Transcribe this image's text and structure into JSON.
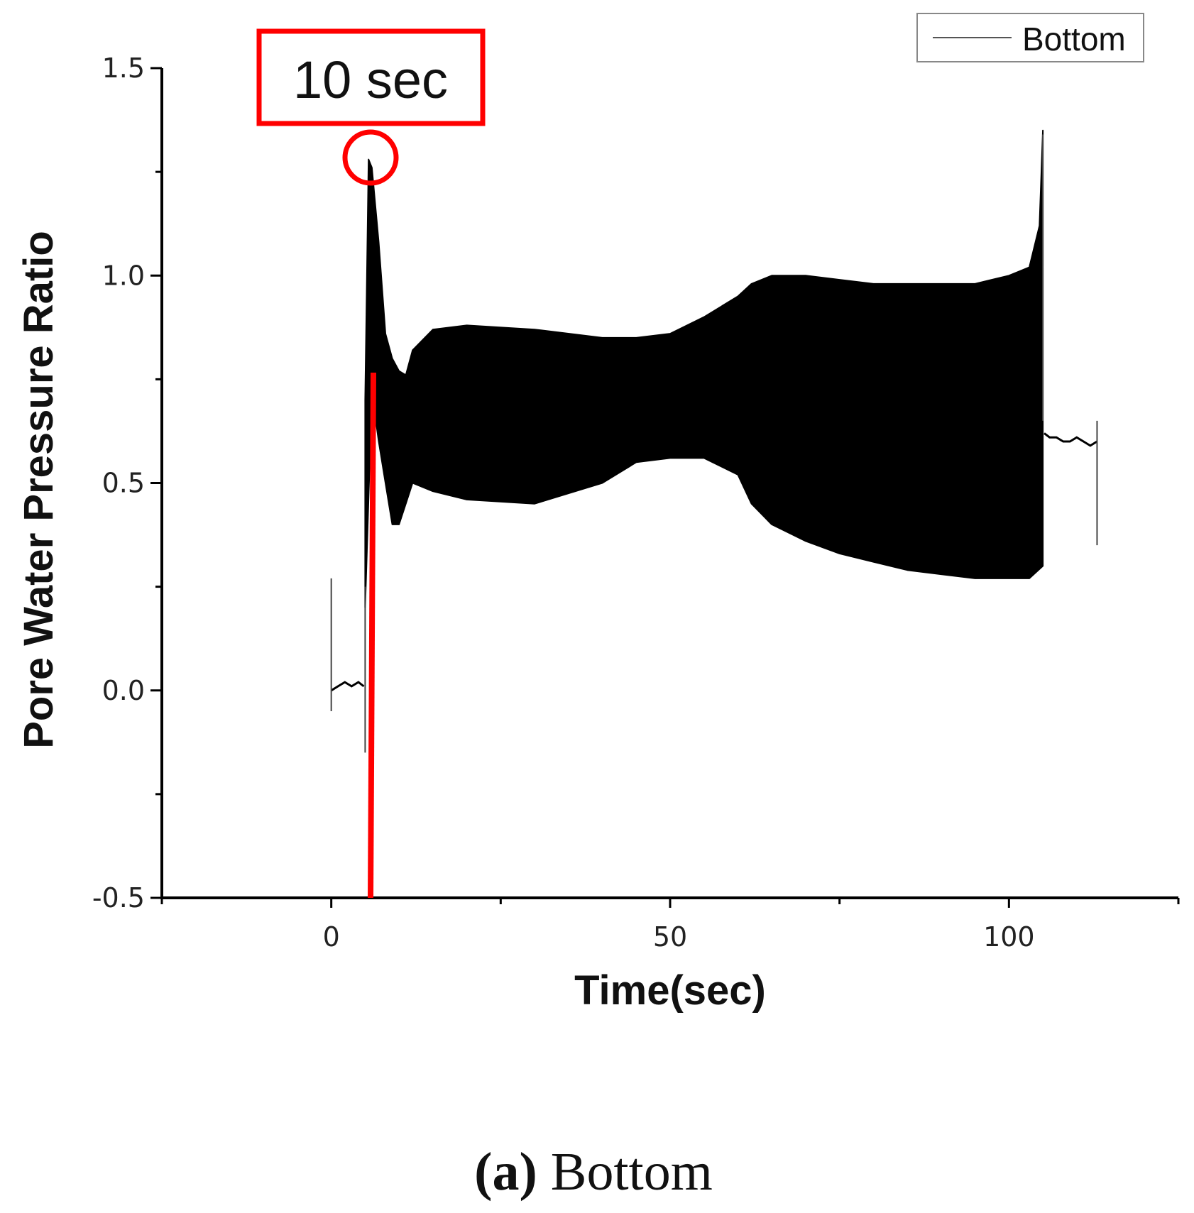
{
  "chart_data": {
    "type": "line",
    "title": "",
    "xlabel": "Time(sec)",
    "ylabel": "Pore Water Pressure Ratio",
    "xlim": [
      -25,
      125
    ],
    "ylim": [
      -0.5,
      1.5
    ],
    "xticks": [
      0,
      50,
      100
    ],
    "xtick_labels": [
      "0",
      "50",
      "100"
    ],
    "xminor": [
      -25,
      25,
      75,
      125
    ],
    "yticks": [
      -0.5,
      0.0,
      0.5,
      1.0,
      1.5
    ],
    "ytick_labels": [
      "-0.5",
      "0.0",
      "0.5",
      "1.0",
      "1.5"
    ],
    "yminor": [
      -0.25,
      0.25,
      0.75,
      1.25
    ],
    "legend": {
      "position": "top-right",
      "entries": [
        "Bottom"
      ]
    },
    "series": [
      {
        "name": "Bottom",
        "color": "#000000",
        "baseline": {
          "x": [
            0,
            1,
            2,
            3,
            4,
            4.8
          ],
          "y": [
            0.0,
            0.01,
            0.02,
            0.01,
            0.02,
            0.01
          ]
        },
        "envelope_upper": {
          "x": [
            5.0,
            5.5,
            6.0,
            7.0,
            8.0,
            9.0,
            10.0,
            11.0,
            12.0,
            15.0,
            20.0,
            30.0,
            40.0,
            45.0,
            50.0,
            55.0,
            60.0,
            62.0,
            65.0,
            70.0,
            75.0,
            80.0,
            85.0,
            90.0,
            95.0,
            100.0,
            103.0,
            104.5,
            105.0
          ],
          "y": [
            0.7,
            1.28,
            1.26,
            1.08,
            0.86,
            0.8,
            0.77,
            0.76,
            0.82,
            0.87,
            0.88,
            0.87,
            0.85,
            0.85,
            0.86,
            0.9,
            0.95,
            0.98,
            1.0,
            1.0,
            0.99,
            0.98,
            0.98,
            0.98,
            0.98,
            1.0,
            1.02,
            1.12,
            1.35
          ]
        },
        "envelope_lower": {
          "x": [
            5.0,
            6.0,
            7.0,
            8.0,
            9.0,
            10.0,
            11.0,
            12.0,
            15.0,
            20.0,
            30.0,
            40.0,
            45.0,
            50.0,
            55.0,
            60.0,
            62.0,
            65.0,
            70.0,
            75.0,
            80.0,
            85.0,
            90.0,
            95.0,
            100.0,
            103.0,
            105.0
          ],
          "y": [
            0.2,
            0.72,
            0.6,
            0.5,
            0.4,
            0.4,
            0.45,
            0.5,
            0.48,
            0.46,
            0.45,
            0.5,
            0.55,
            0.56,
            0.56,
            0.52,
            0.45,
            0.4,
            0.36,
            0.33,
            0.31,
            0.29,
            0.28,
            0.27,
            0.27,
            0.27,
            0.3
          ]
        },
        "tail": {
          "x": [
            105.2,
            106,
            107,
            108,
            109,
            110,
            111,
            112,
            113
          ],
          "y": [
            0.62,
            0.61,
            0.61,
            0.6,
            0.6,
            0.61,
            0.6,
            0.59,
            0.6
          ]
        },
        "spikes": [
          {
            "x": 0.0,
            "y_from": -0.05,
            "y_to": 0.27
          },
          {
            "x": 5.0,
            "y_from": -0.15,
            "y_to": 0.25
          },
          {
            "x": 105.0,
            "y_from": 0.65,
            "y_to": 1.34
          },
          {
            "x": 113.0,
            "y_from": 0.35,
            "y_to": 0.65
          }
        ]
      }
    ],
    "annotations": [
      {
        "text": "10 sec",
        "style": "red box with circle at peak and vertical line",
        "x": 5.8,
        "y": 1.28,
        "color": "#ff0000"
      }
    ],
    "caption": {
      "label": "(a)",
      "text": " Bottom"
    }
  }
}
